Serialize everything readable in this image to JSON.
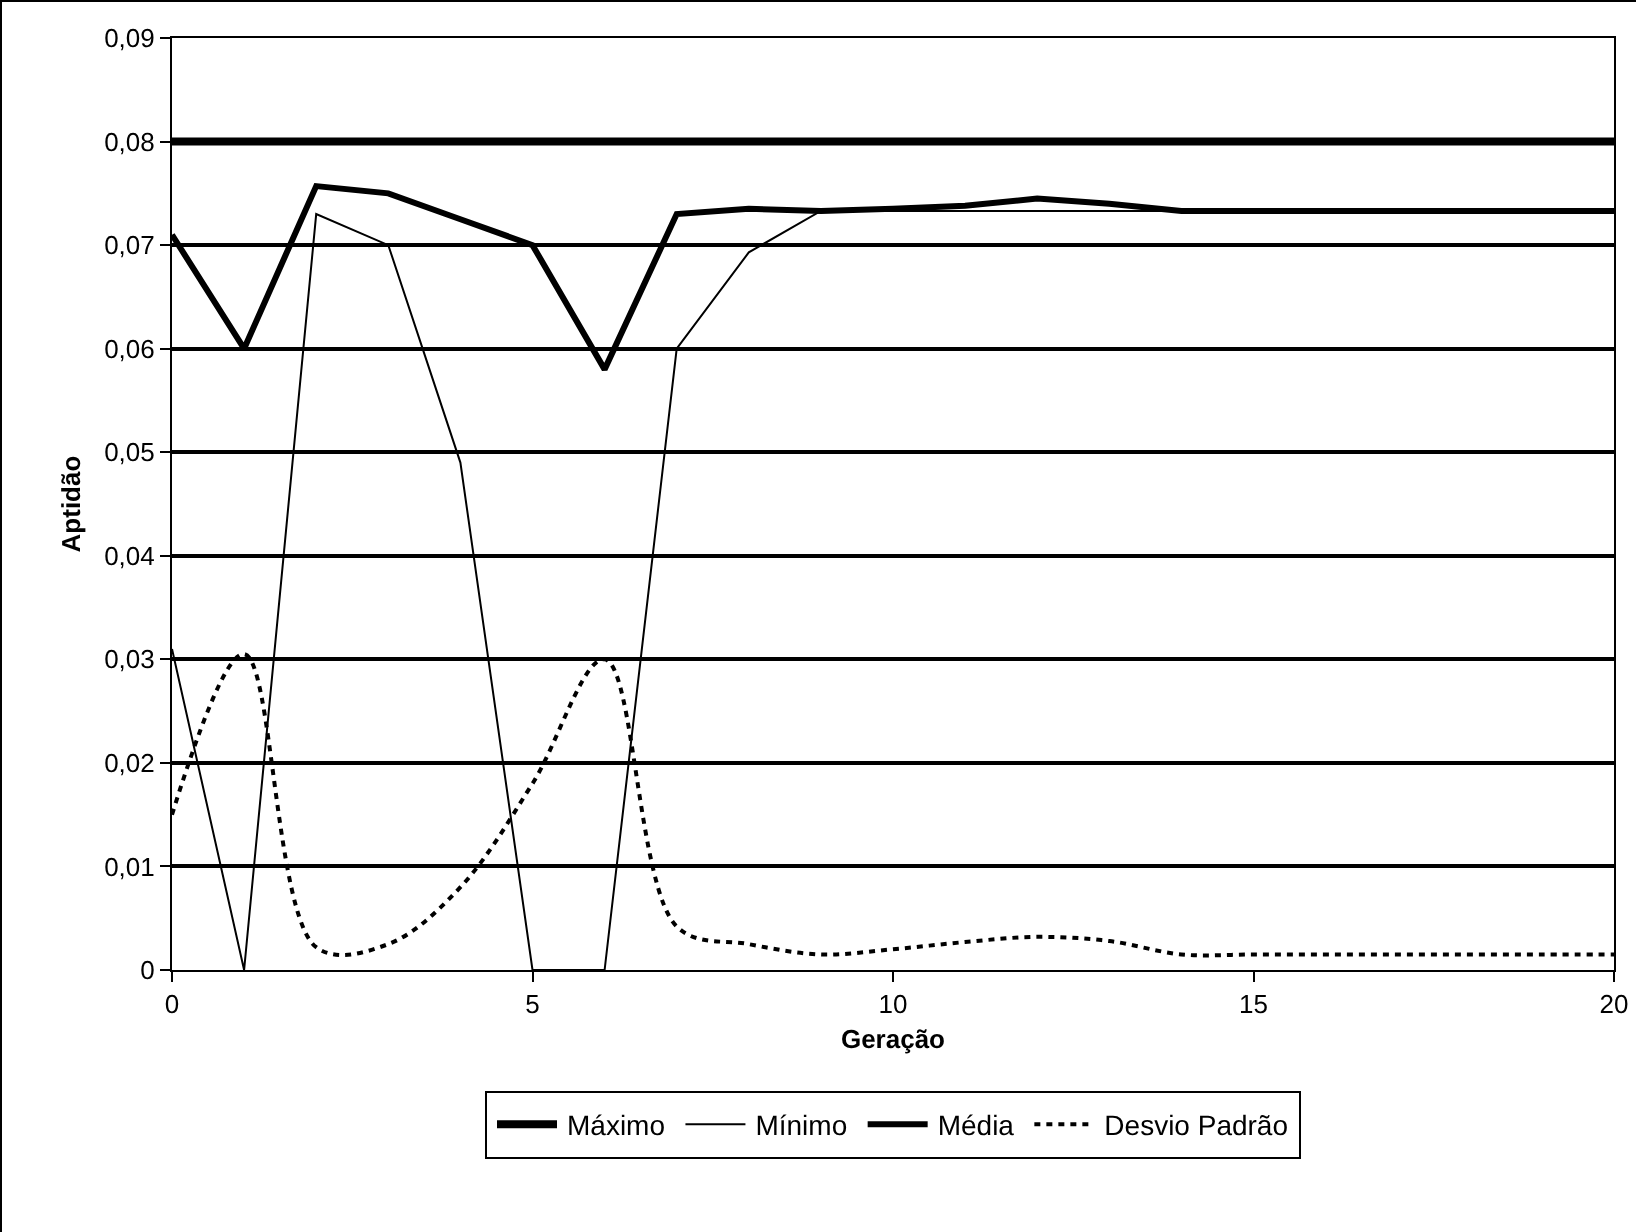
{
  "chart_data": {
    "type": "line",
    "xlabel": "Geração",
    "ylabel": "Aptidão",
    "x": [
      0,
      1,
      2,
      3,
      4,
      5,
      6,
      7,
      8,
      9,
      10,
      11,
      12,
      13,
      14,
      15,
      16,
      17,
      18,
      19,
      20
    ],
    "series": [
      {
        "name": "Máximo",
        "color": "#000000",
        "line_style": "solid",
        "values": [
          0.08,
          0.08,
          0.08,
          0.08,
          0.08,
          0.08,
          0.08,
          0.08,
          0.08,
          0.08,
          0.08,
          0.08,
          0.08,
          0.08,
          0.08,
          0.08,
          0.08,
          0.08,
          0.08,
          0.08,
          0.08
        ]
      },
      {
        "name": "Mínimo",
        "color": "#000000",
        "line_style": "solid",
        "values": [
          0.031,
          0,
          0.073,
          0.07,
          0.049,
          0,
          0,
          0.06,
          0.0693,
          0.0733,
          0.0733,
          0.0733,
          0.0733,
          0.0733,
          0.0733,
          0.0733,
          0.0733,
          0.0733,
          0.0733,
          0.0733,
          0.0733
        ]
      },
      {
        "name": "Média",
        "color": "#000000",
        "line_style": "solid",
        "values": [
          0.071,
          0.06,
          0.0757,
          0.075,
          0.0725,
          0.07,
          0.058,
          0.073,
          0.0735,
          0.0733,
          0.0735,
          0.0738,
          0.0745,
          0.074,
          0.0733,
          0.0733,
          0.0733,
          0.0733,
          0.0733,
          0.0733,
          0.0733
        ]
      },
      {
        "name": "Desvio Padrão",
        "color": "#000000",
        "line_style": "dotted",
        "values": [
          0.015,
          0.0305,
          0.0022,
          0.0025,
          0.008,
          0.018,
          0.03,
          0.0042,
          0.0025,
          0.0015,
          0.002,
          0.0027,
          0.0032,
          0.0028,
          0.0015,
          0.0015,
          0.0015,
          0.0015,
          0.0015,
          0.0015,
          0.0015
        ]
      }
    ],
    "xlim": [
      0,
      20
    ],
    "xticks": [
      0,
      5,
      10,
      15,
      20
    ],
    "ylim": [
      0,
      0.09
    ],
    "yticks": [
      {
        "value": 0,
        "label": "0"
      },
      {
        "value": 0.01,
        "label": "0,01"
      },
      {
        "value": 0.02,
        "label": "0,02"
      },
      {
        "value": 0.03,
        "label": "0,03"
      },
      {
        "value": 0.04,
        "label": "0,04"
      },
      {
        "value": 0.05,
        "label": "0,05"
      },
      {
        "value": 0.06,
        "label": "0,06"
      },
      {
        "value": 0.07,
        "label": "0,07"
      },
      {
        "value": 0.08,
        "label": "0,08"
      },
      {
        "value": 0.09,
        "label": "0,09"
      }
    ],
    "grid": "y",
    "legend": "bottom"
  }
}
